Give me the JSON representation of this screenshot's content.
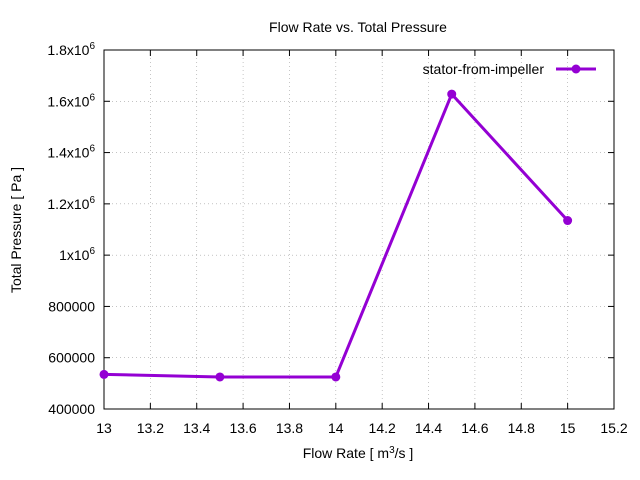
{
  "chart_data": {
    "type": "line",
    "title": "Flow Rate vs. Total Pressure",
    "xlabel": "Flow Rate [ m3/s ]",
    "xlabel_parts": {
      "pre": "Flow Rate [ m",
      "sup": "3",
      "post": "/s ]"
    },
    "ylabel": "Total Pressure [ Pa ]",
    "xlim": [
      13,
      15.2
    ],
    "ylim": [
      400000,
      1800000
    ],
    "x_ticks": [
      13,
      13.2,
      13.4,
      13.6,
      13.8,
      14,
      14.2,
      14.4,
      14.6,
      14.8,
      15,
      15.2
    ],
    "x_tick_labels": [
      "13",
      "13.2",
      "13.4",
      "13.6",
      "13.8",
      "14",
      "14.2",
      "14.4",
      "14.6",
      "14.8",
      "15",
      "15.2"
    ],
    "y_ticks": [
      {
        "value": 400000,
        "base": "400000",
        "exp": ""
      },
      {
        "value": 600000,
        "base": "600000",
        "exp": ""
      },
      {
        "value": 800000,
        "base": "800000",
        "exp": ""
      },
      {
        "value": 1000000,
        "base": "1x10",
        "exp": "6"
      },
      {
        "value": 1200000,
        "base": "1.2x10",
        "exp": "6"
      },
      {
        "value": 1400000,
        "base": "1.4x10",
        "exp": "6"
      },
      {
        "value": 1600000,
        "base": "1.6x10",
        "exp": "6"
      },
      {
        "value": 1800000,
        "base": "1.8x10",
        "exp": "6"
      }
    ],
    "grid": true,
    "legend_position": "top-right",
    "series": [
      {
        "name": "stator-from-impeller",
        "color": "#9400d3",
        "x": [
          13,
          13.5,
          14,
          14.5,
          15
        ],
        "y": [
          535000,
          525000,
          525000,
          1628000,
          1135000
        ]
      }
    ]
  }
}
